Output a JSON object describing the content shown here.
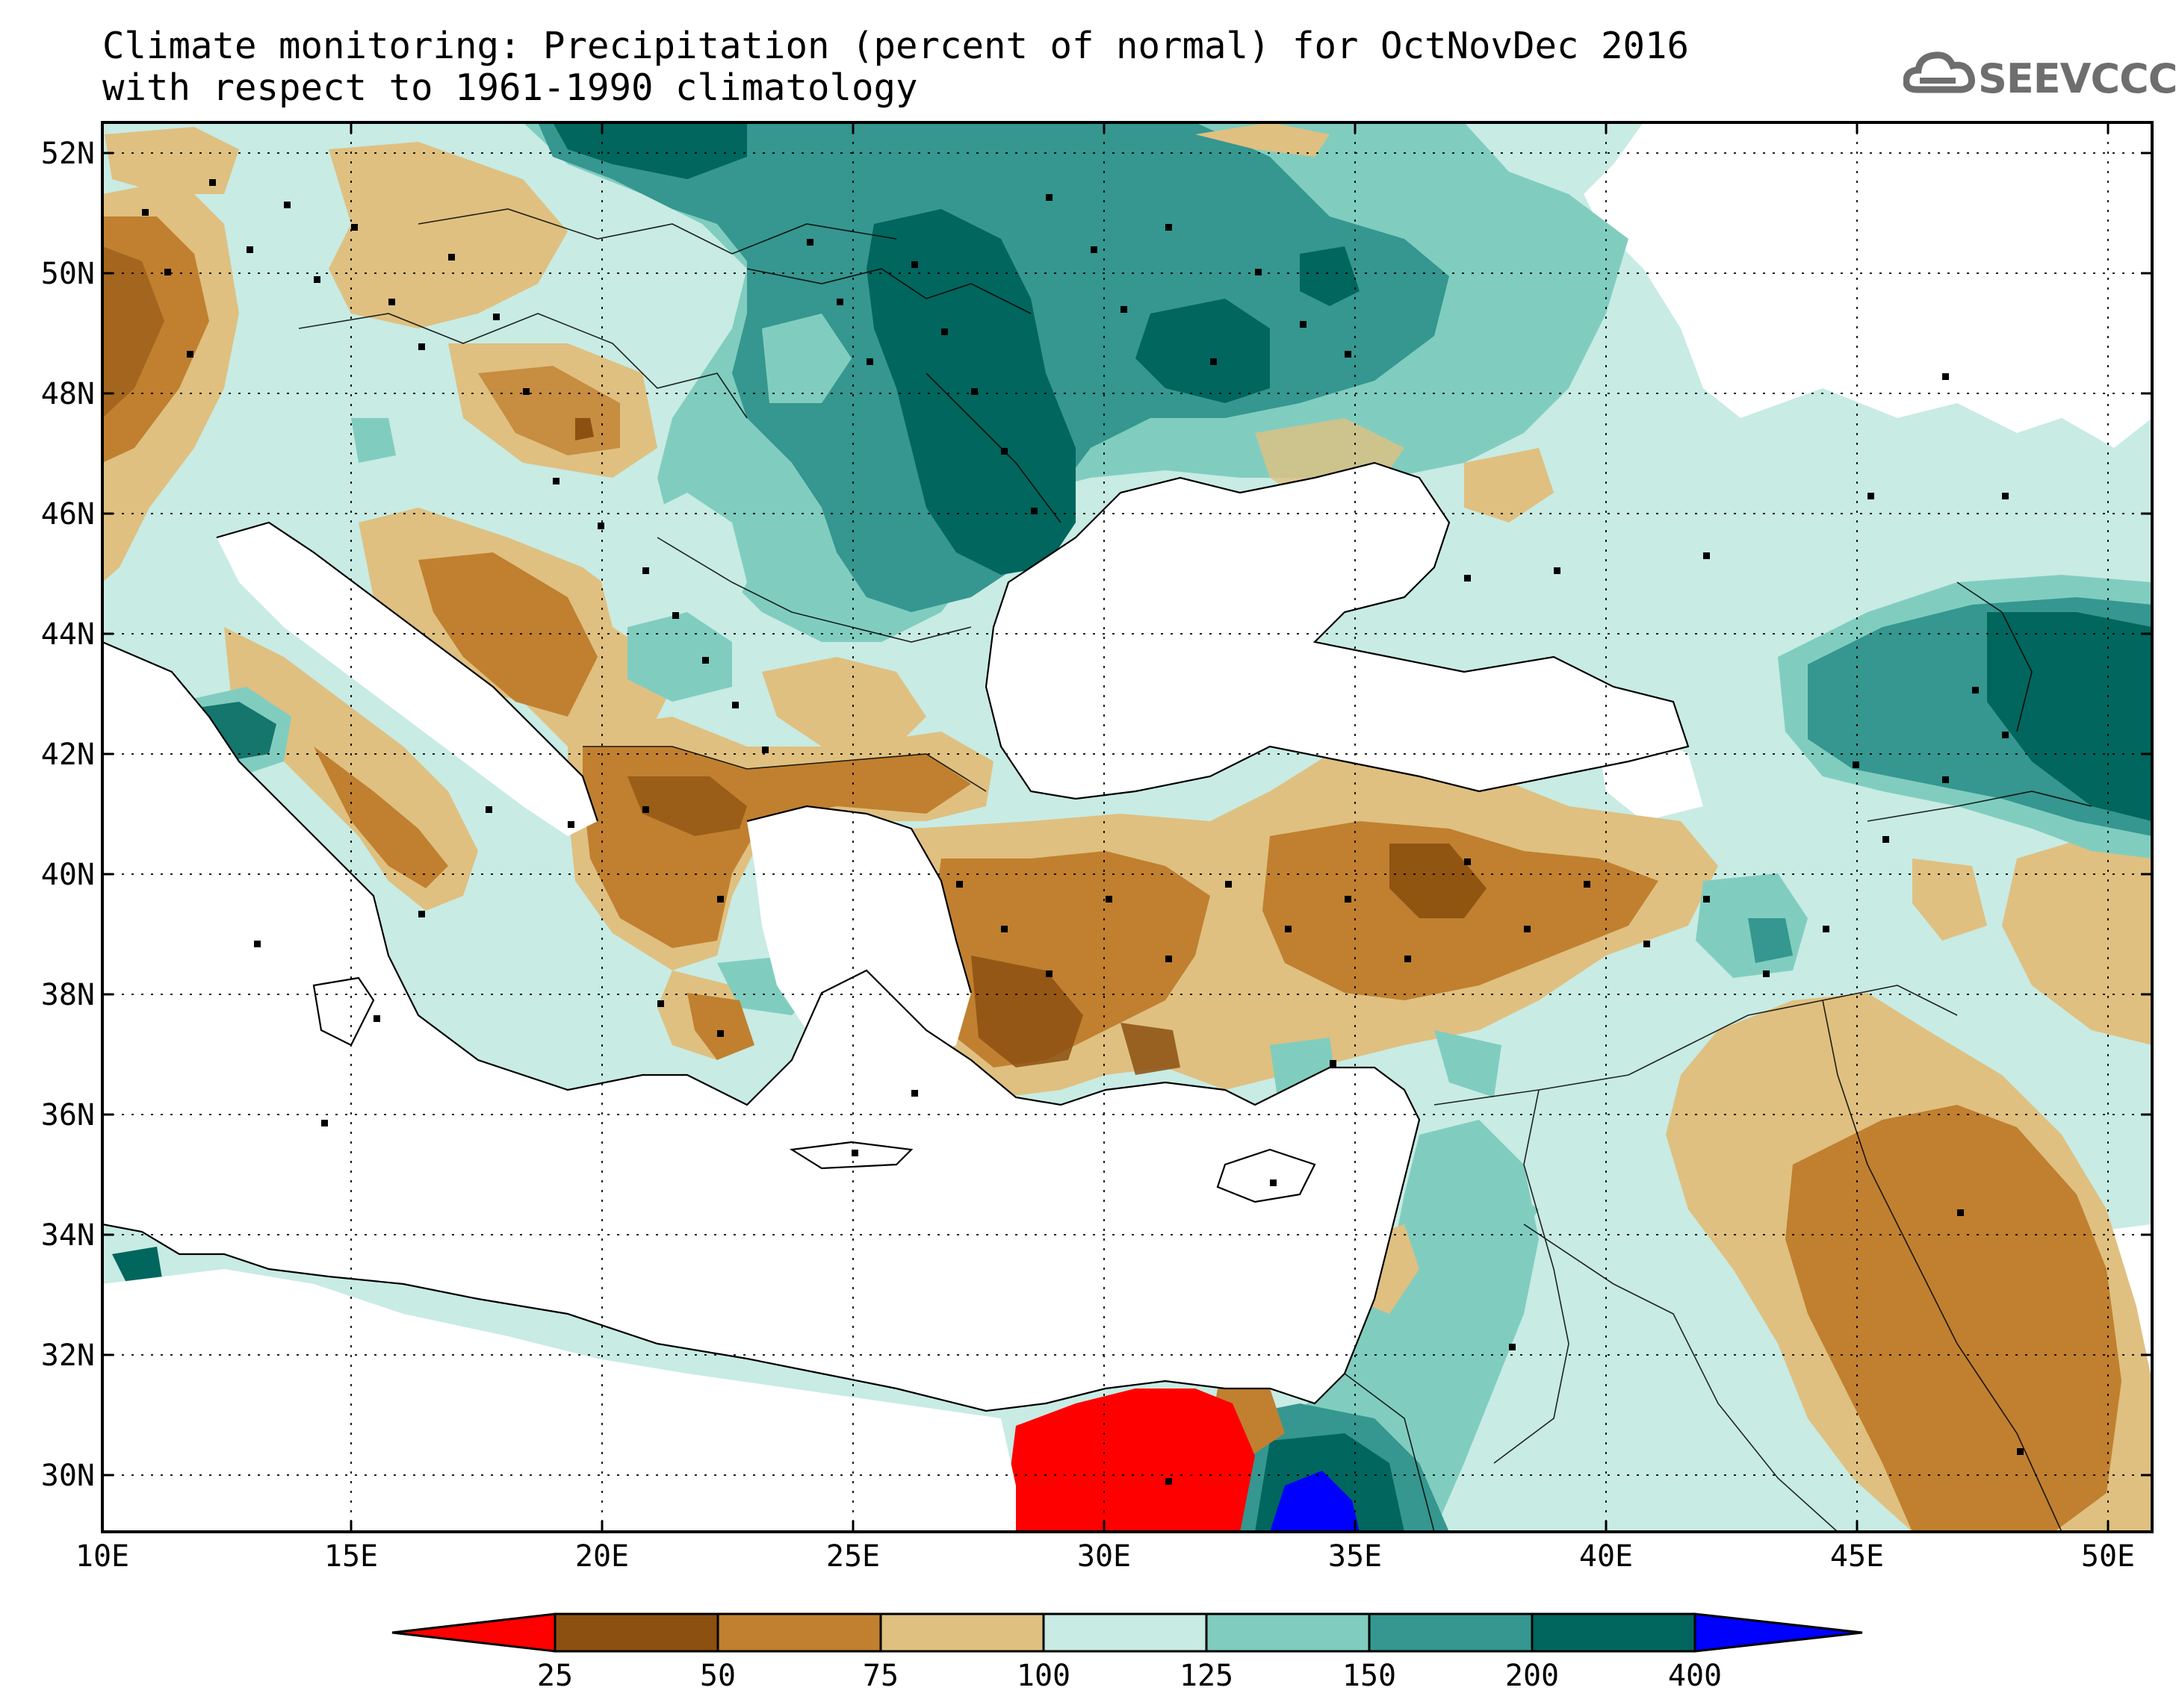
{
  "title": {
    "line1": "Climate monitoring: Precipitation (percent of normal) for OctNovDec 2016",
    "line2": "with respect to 1961-1990 climatology"
  },
  "logo": {
    "text": "SEEVCCC",
    "icon": "cloud-icon"
  },
  "map": {
    "lat_labels": [
      "52N",
      "50N",
      "48N",
      "46N",
      "44N",
      "42N",
      "40N",
      "38N",
      "36N",
      "34N",
      "32N",
      "30N"
    ],
    "lon_labels": [
      "10E",
      "15E",
      "20E",
      "25E",
      "30E",
      "35E",
      "40E",
      "45E",
      "50E"
    ]
  },
  "colorbar": {
    "labels": [
      "25",
      "50",
      "75",
      "100",
      "125",
      "150",
      "200",
      "400"
    ],
    "colors": [
      "#ff0000",
      "#8c5010",
      "#c08030",
      "#dfc080",
      "#c8ebe4",
      "#80cdc0",
      "#35978f",
      "#01665e",
      "#0000ff"
    ]
  }
}
